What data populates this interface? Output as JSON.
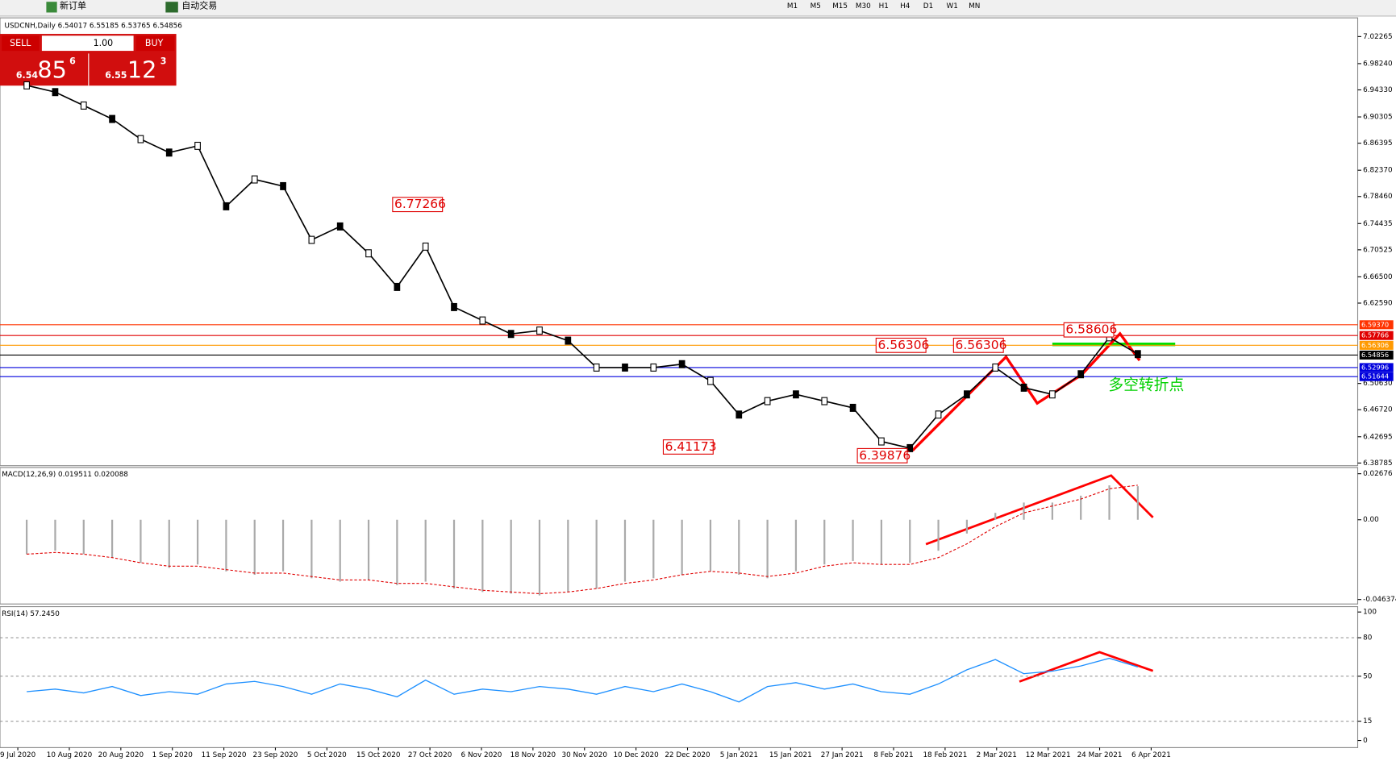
{
  "toolbar": {
    "buttons": [
      "新订单",
      "自动交易"
    ],
    "timeframes": [
      "M1",
      "M5",
      "M15",
      "M30",
      "H1",
      "H4",
      "D1",
      "W1",
      "MN"
    ]
  },
  "chart_info": "USDCNH,Daily 6.54017 6.55185 6.53765 6.54856",
  "trade_panel": {
    "sell": "SELL",
    "lot": "1.00",
    "buy": "BUY",
    "bid": {
      "big": "6.54",
      "main": "85",
      "small": "6"
    },
    "ask": {
      "big": "6.55",
      "main": "12",
      "small": "3"
    }
  },
  "price_chart": {
    "ylim": [
      6.38785,
      7.02265
    ],
    "yticks": [
      7.02265,
      {
        "value": 6.9824,
        "label": "6.98240"
      },
      {
        "value": 6.9433,
        "label": "6.94330"
      },
      6.90305,
      6.86395,
      {
        "value": 6.8237,
        "label": "6.82370"
      },
      {
        "value": 6.7846,
        "label": "6.78460"
      },
      6.74435,
      6.70525,
      {
        "value": 6.665,
        "label": "6.66500"
      },
      {
        "value": 6.6259,
        "label": "6.62590"
      },
      {
        "value": 6.5063,
        "label": "6.50630"
      },
      {
        "value": 6.4672,
        "label": "6.46720"
      },
      6.42695,
      6.38785
    ],
    "price_levels": [
      {
        "value": 6.5937,
        "label": "6.59370",
        "color": "#ff3300"
      },
      {
        "value": 6.57766,
        "color": "#e00000"
      },
      {
        "value": 6.56306,
        "color": "#ff9900"
      },
      {
        "value": 6.54856,
        "color": "#000000"
      },
      {
        "value": 6.52996,
        "color": "#0000dd"
      },
      {
        "value": 6.51644,
        "color": "#0000dd"
      }
    ],
    "annotations": [
      6.77266,
      6.56306,
      6.56306,
      6.58606,
      6.41173,
      6.39876
    ],
    "note": "多空转折点",
    "closes": [
      6.95,
      6.94,
      6.92,
      6.9,
      6.87,
      6.85,
      6.86,
      6.77,
      6.81,
      6.8,
      6.72,
      6.74,
      6.7,
      6.65,
      6.71,
      6.62,
      6.6,
      6.58,
      6.585,
      6.57,
      6.53,
      6.53,
      6.53,
      6.535,
      6.51,
      6.46,
      6.48,
      6.49,
      6.48,
      6.47,
      6.42,
      6.41,
      6.46,
      6.49,
      6.53,
      6.5,
      6.49,
      6.52,
      6.575,
      6.55
    ]
  },
  "macd": {
    "label": "MACD(12,26,9) 0.019511 0.020088",
    "ylim": [
      -0.046374,
      0.02676
    ],
    "yticks": [
      0.02676,
      {
        "value": 0,
        "label": "0.00"
      },
      -0.046374
    ],
    "histogram": [
      -0.02,
      -0.018,
      -0.02,
      -0.022,
      -0.025,
      -0.028,
      -0.026,
      -0.03,
      -0.032,
      -0.03,
      -0.034,
      -0.036,
      -0.035,
      -0.038,
      -0.036,
      -0.04,
      -0.042,
      -0.043,
      -0.044,
      -0.042,
      -0.04,
      -0.036,
      -0.034,
      -0.032,
      -0.03,
      -0.032,
      -0.034,
      -0.03,
      -0.026,
      -0.024,
      -0.026,
      -0.025,
      -0.018,
      -0.008,
      0.004,
      0.01,
      0.01,
      0.014,
      0.02,
      0.019511
    ],
    "signal": [
      -0.02,
      -0.019,
      -0.02,
      -0.022,
      -0.025,
      -0.027,
      -0.027,
      -0.029,
      -0.031,
      -0.031,
      -0.033,
      -0.035,
      -0.035,
      -0.037,
      -0.037,
      -0.039,
      -0.041,
      -0.042,
      -0.043,
      -0.042,
      -0.04,
      -0.037,
      -0.035,
      -0.032,
      -0.03,
      -0.031,
      -0.033,
      -0.031,
      -0.027,
      -0.025,
      -0.026,
      -0.026,
      -0.022,
      -0.014,
      -0.004,
      0.004,
      0.008,
      0.012,
      0.018,
      0.020088
    ]
  },
  "rsi": {
    "label": "RSI(14) 57.2450",
    "ylim": [
      0,
      100
    ],
    "yticks": [
      100,
      80,
      50,
      15,
      0
    ],
    "values": [
      38,
      40,
      37,
      42,
      35,
      38,
      36,
      44,
      46,
      42,
      36,
      44,
      40,
      34,
      47,
      36,
      40,
      38,
      42,
      40,
      36,
      42,
      38,
      44,
      38,
      30,
      42,
      45,
      40,
      44,
      38,
      36,
      44,
      55,
      63,
      52,
      54,
      58,
      64,
      57.245
    ]
  },
  "dates": [
    "9 Jul 2020",
    "10 Aug 2020",
    "20 Aug 2020",
    "1 Sep 2020",
    "11 Sep 2020",
    "23 Sep 2020",
    "5 Oct 2020",
    "15 Oct 2020",
    "27 Oct 2020",
    "6 Nov 2020",
    "18 Nov 2020",
    "30 Nov 2020",
    "10 Dec 2020",
    "22 Dec 2020",
    "5 Jan 2021",
    "15 Jan 2021",
    "27 Jan 2021",
    "8 Feb 2021",
    "18 Feb 2021",
    "2 Mar 2021",
    "12 Mar 2021",
    "24 Mar 2021",
    "6 Apr 2021"
  ]
}
